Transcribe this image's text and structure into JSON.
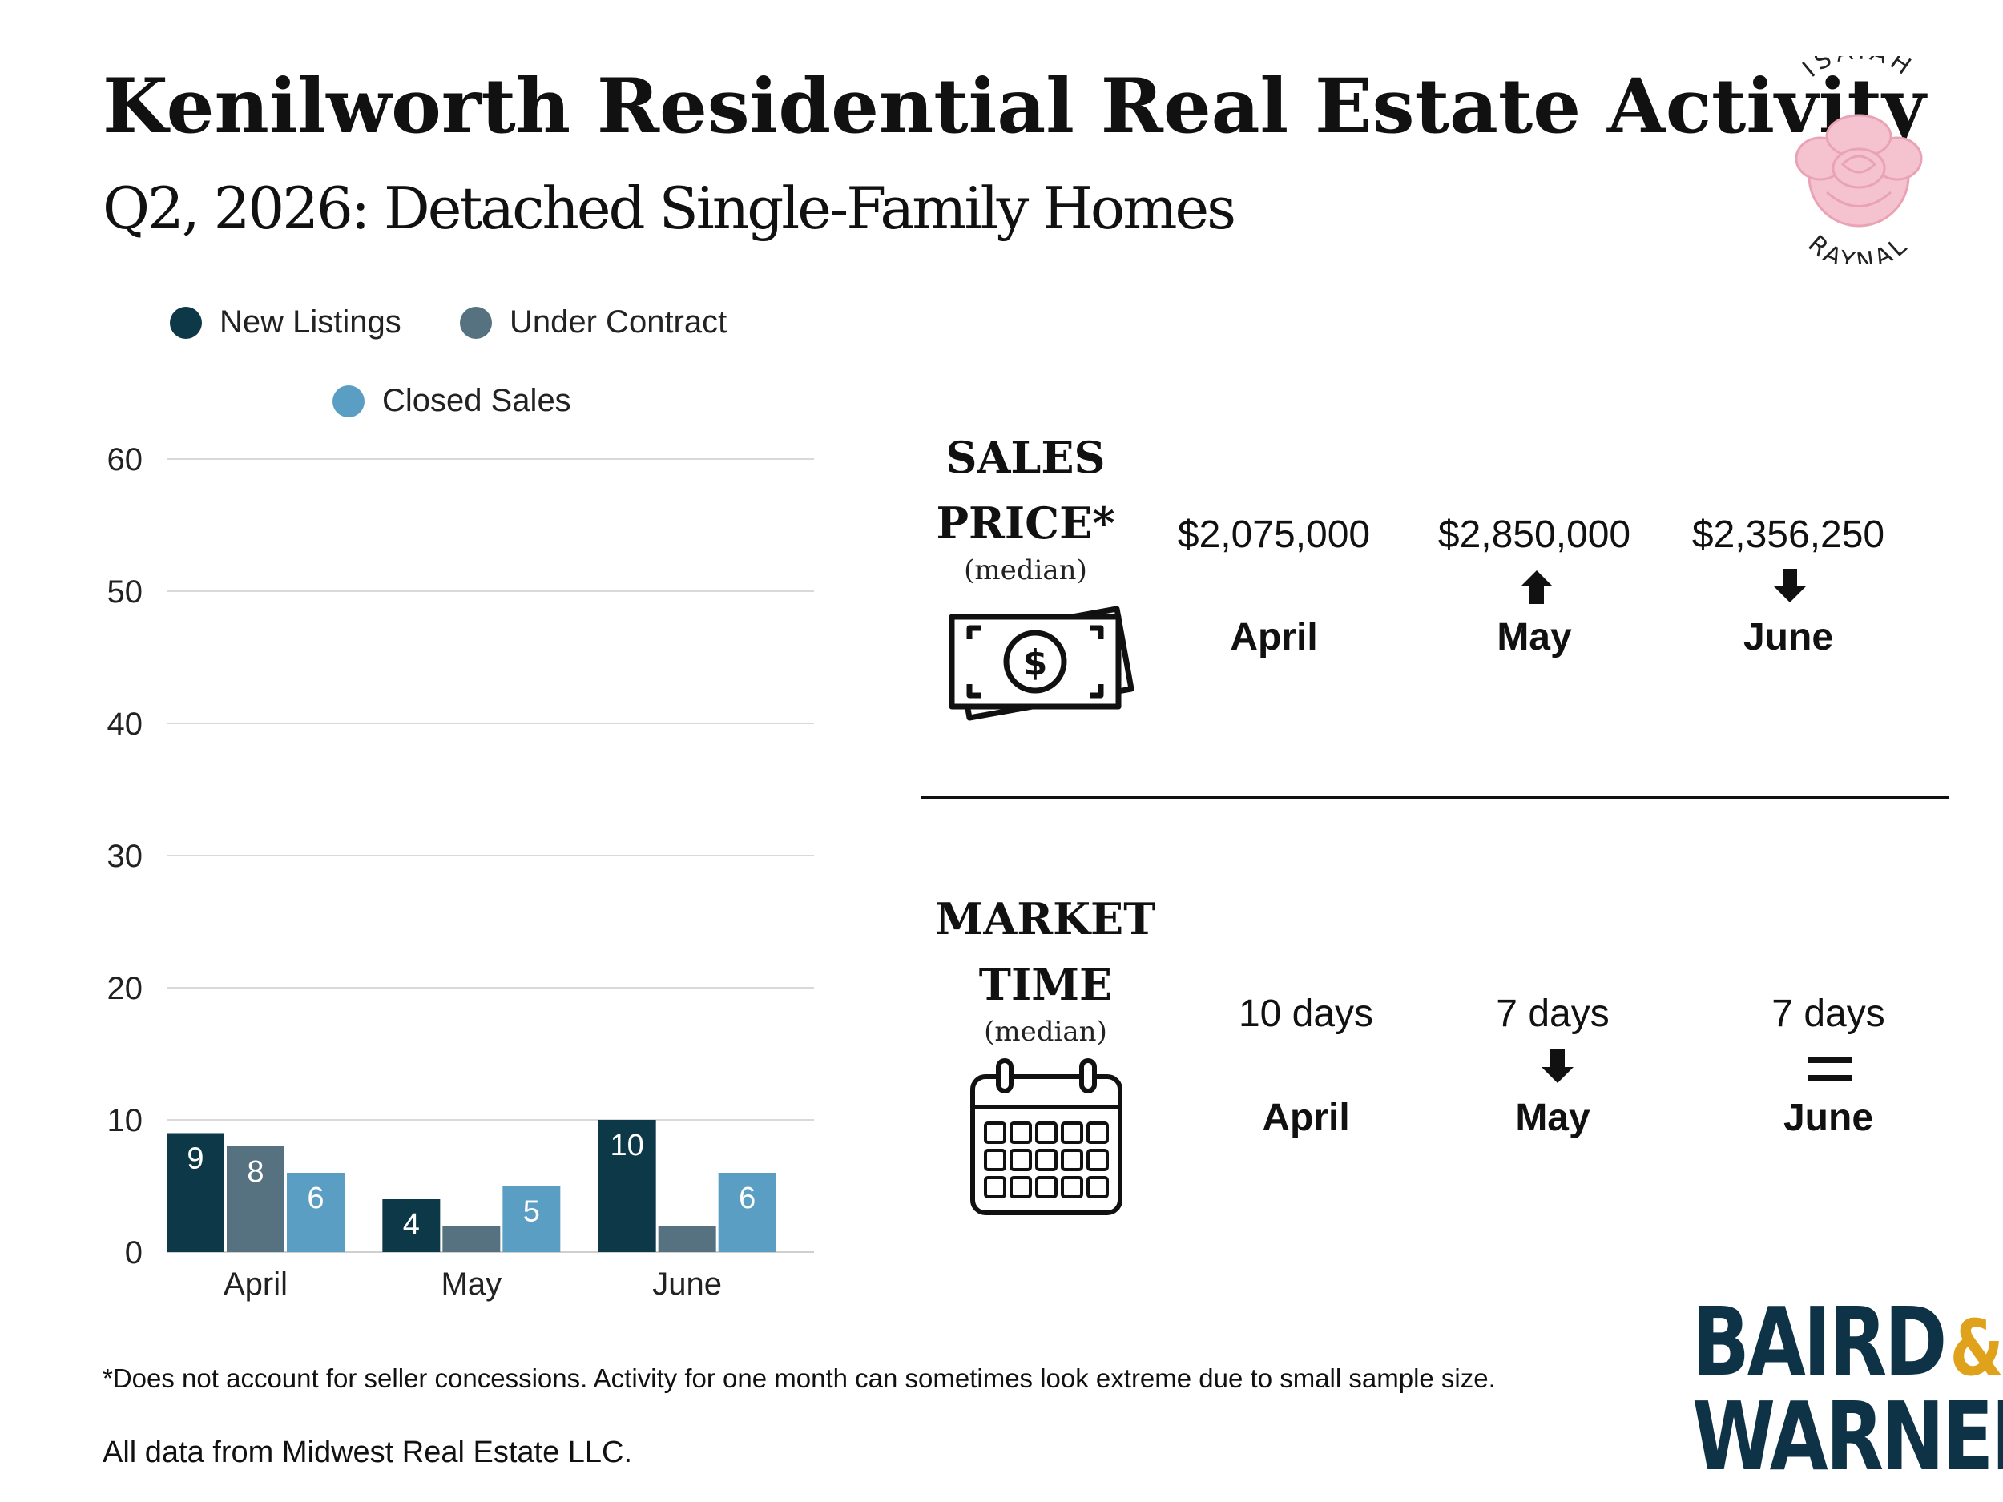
{
  "header": {
    "title": "Kenilworth Residential Real Estate Activity",
    "subtitle": "Q2, 2026: Detached Single-Family Homes"
  },
  "logo": {
    "top_text": "ISAIAH",
    "bottom_text": "RAYNAL",
    "icon": "rose-icon",
    "color": "#f2b8c6"
  },
  "colors": {
    "new_listings": "#0c3847",
    "under_contract": "#56717f",
    "closed_sales": "#5b9ec4",
    "brand_navy": "#0f3346",
    "brand_gold": "#e0a21b"
  },
  "chart_data": {
    "type": "bar",
    "categories": [
      "April",
      "May",
      "June"
    ],
    "series": [
      {
        "name": "New Listings",
        "values": [
          9,
          4,
          10
        ]
      },
      {
        "name": "Under Contract",
        "values": [
          8,
          2,
          2
        ]
      },
      {
        "name": "Closed Sales",
        "values": [
          6,
          5,
          6
        ]
      }
    ],
    "data_labels": [
      [
        "9",
        "4",
        "10"
      ],
      [
        "8",
        "",
        ""
      ],
      [
        "6",
        "5",
        "6"
      ]
    ],
    "yticks": [
      "0",
      "10",
      "20",
      "30",
      "40",
      "50",
      "60"
    ],
    "ylim": [
      0,
      60
    ],
    "grid": true,
    "legend": "top"
  },
  "sales_price": {
    "label_line1": "SALES",
    "label_line2": "PRICE*",
    "sublabel": "(median)",
    "icon": "money-icon",
    "items": [
      {
        "value": "$2,075,000",
        "month": "April",
        "trend": "none"
      },
      {
        "value": "$2,850,000",
        "month": "May",
        "trend": "up"
      },
      {
        "value": "$2,356,250",
        "month": "June",
        "trend": "down"
      }
    ]
  },
  "market_time": {
    "label_line1": "MARKET",
    "label_line2": "TIME",
    "sublabel": "(median)",
    "icon": "calendar-icon",
    "items": [
      {
        "value": "10 days",
        "month": "April",
        "trend": "none"
      },
      {
        "value": "7 days",
        "month": "May",
        "trend": "down"
      },
      {
        "value": "7 days",
        "month": "June",
        "trend": "equal"
      }
    ]
  },
  "footer": {
    "disclaimer": "*Does not account for seller concessions. Activity for one month can sometimes look extreme due to small sample size.",
    "source": "All data from Midwest Real Estate LLC."
  },
  "brand": {
    "line1": "BAIRD",
    "ampersand": "&",
    "line2": "WARNER"
  }
}
